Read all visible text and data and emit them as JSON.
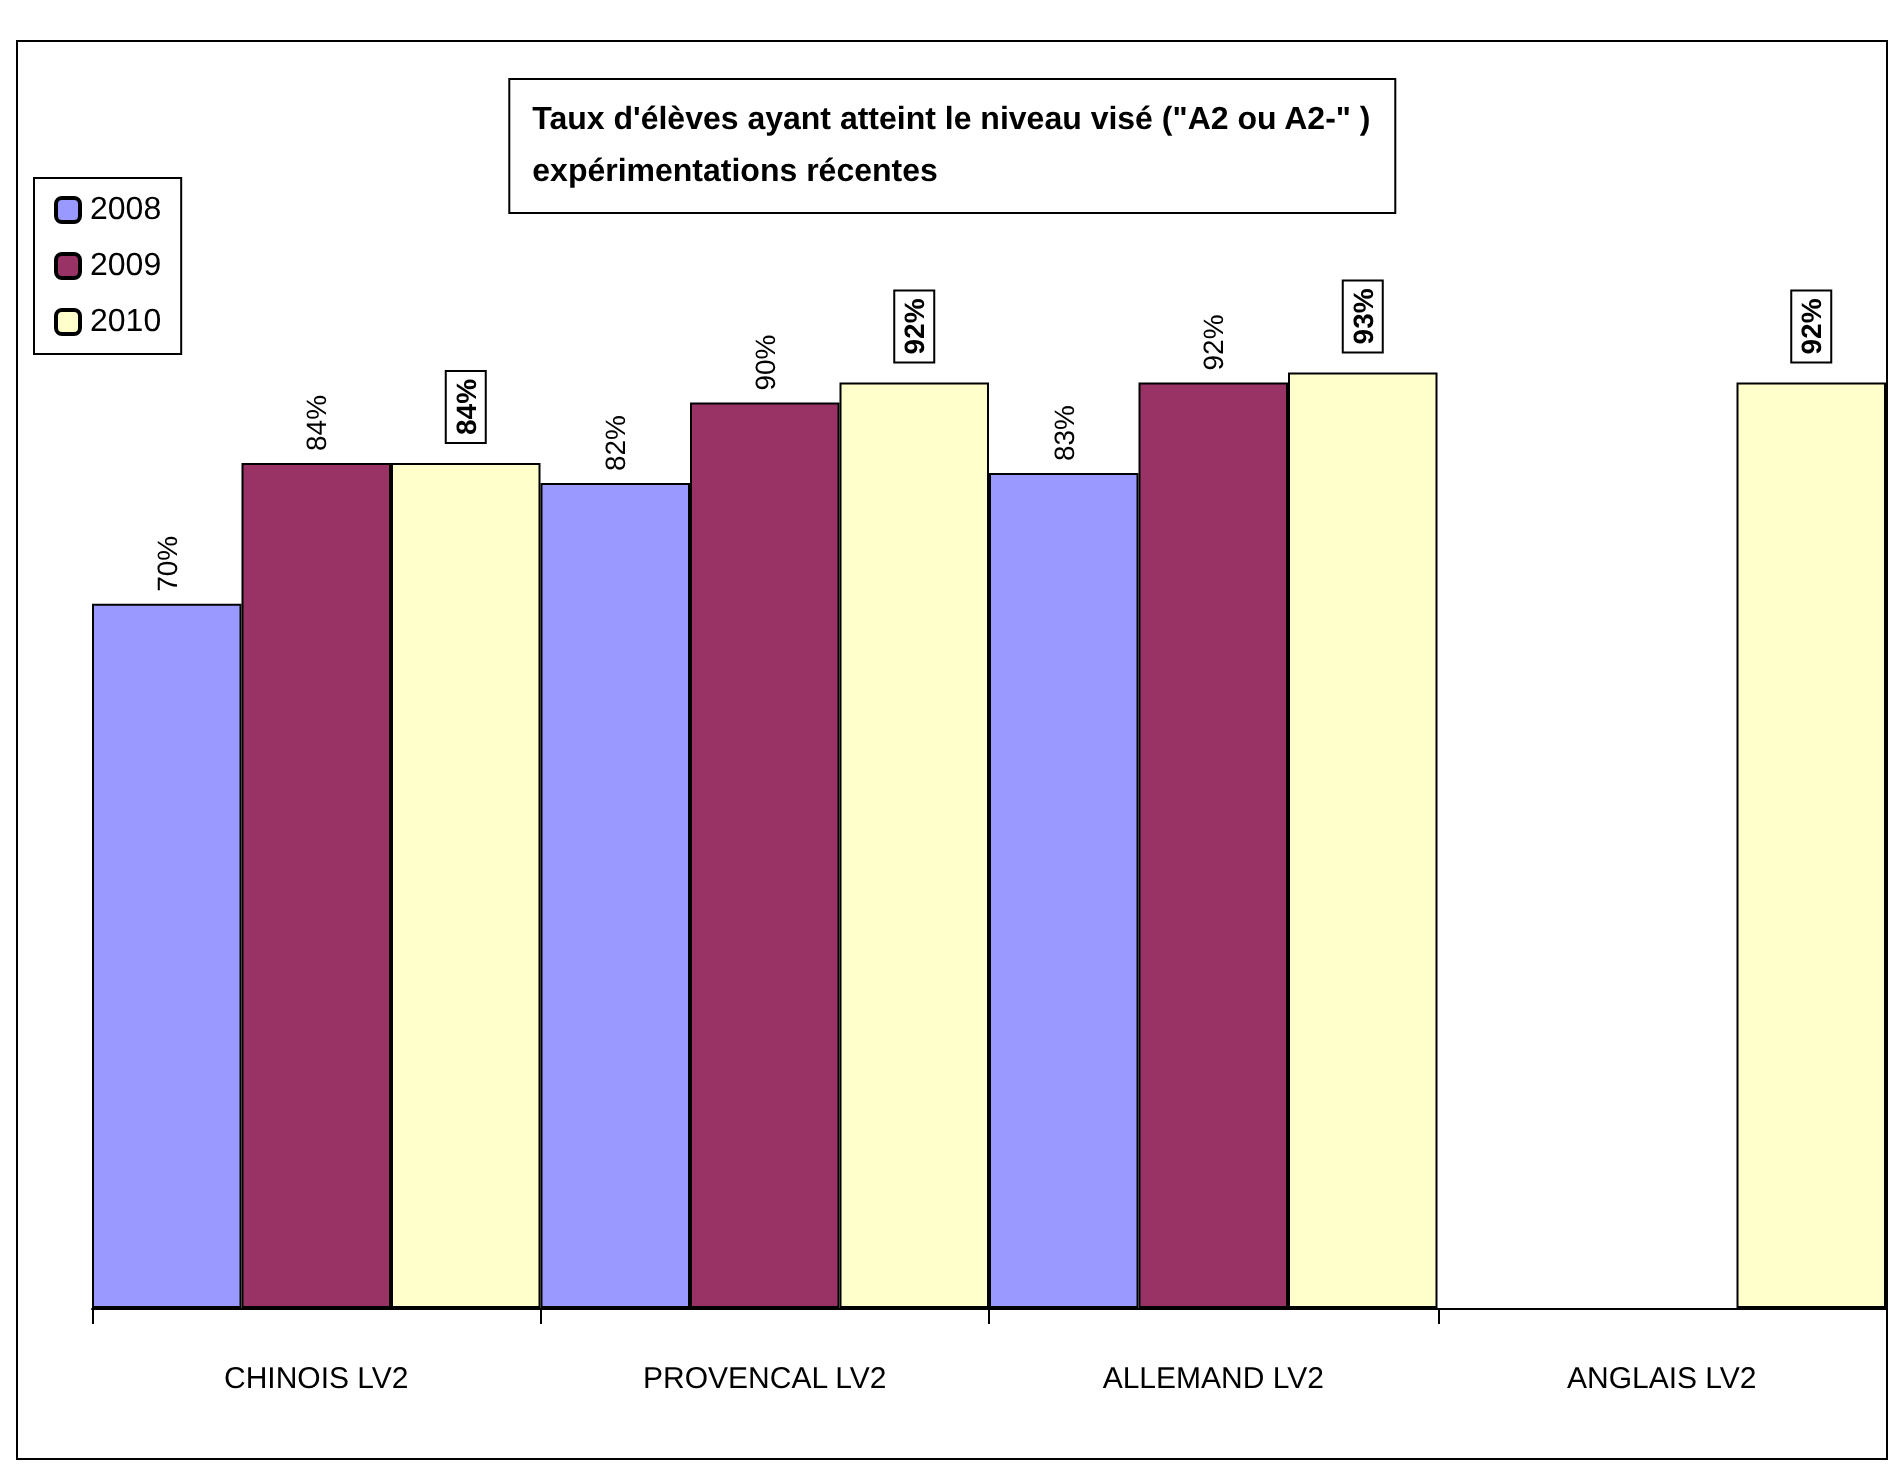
{
  "chart_data": {
    "type": "bar",
    "title": "Taux d'élèves ayant atteint le niveau visé (\"A2 ou A2-\" )\nexpérimentations récentes",
    "categories": [
      "CHINOIS LV2",
      "PROVENCAL LV2",
      "ALLEMAND LV2",
      "ANGLAIS LV2"
    ],
    "series": [
      {
        "name": "2008",
        "color": "#9999ff",
        "values": [
          70,
          82,
          83,
          null
        ],
        "value_labels": [
          "70%",
          "82%",
          "83%",
          null
        ]
      },
      {
        "name": "2009",
        "color": "#993366",
        "values": [
          84,
          90,
          92,
          null
        ],
        "value_labels": [
          "84%",
          "90%",
          "92%",
          null
        ]
      },
      {
        "name": "2010",
        "color": "#ffffcc",
        "values": [
          84,
          92,
          93,
          92
        ],
        "value_labels": [
          "84%",
          "92%",
          "93%",
          "92%"
        ]
      }
    ],
    "legend": "top left",
    "grid": false
  }
}
